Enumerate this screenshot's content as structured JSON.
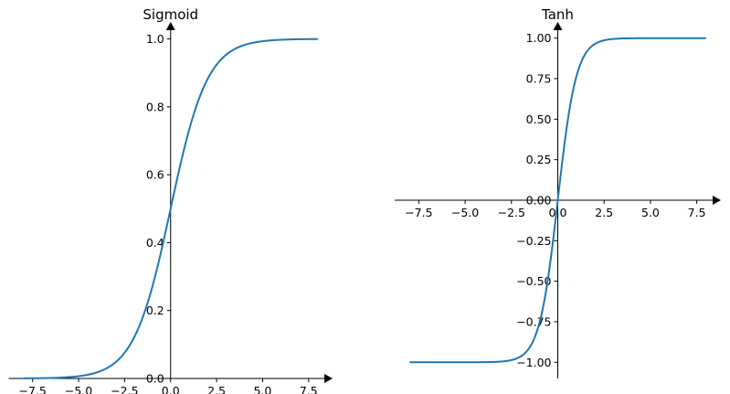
{
  "chart_data": [
    {
      "type": "line",
      "title": "Sigmoid",
      "xlabel": "",
      "ylabel": "",
      "xlim": [
        -8.8,
        8.8
      ],
      "ylim": [
        0.0,
        1.05
      ],
      "x_ticks": [
        -7.5,
        -5.0,
        -2.5,
        0.0,
        2.5,
        5.0,
        7.5
      ],
      "x_tick_labels": [
        "−7.5",
        "−5.0",
        "−2.5",
        "0.0",
        "2.5",
        "5.0",
        "7.5"
      ],
      "y_ticks": [
        0.0,
        0.2,
        0.4,
        0.6,
        0.8,
        1.0
      ],
      "y_tick_labels": [
        "0.0",
        "0.2",
        "0.4",
        "0.6",
        "0.8",
        "1.0"
      ],
      "axes_through_origin": true,
      "axis_arrows": true,
      "grid": false,
      "series": [
        {
          "color": "#1f77b4",
          "function": "sigmoid",
          "x_range": [
            -8,
            8
          ],
          "points": [
            [
              -8,
              0.0003
            ],
            [
              -6,
              0.0025
            ],
            [
              -4,
              0.018
            ],
            [
              -3,
              0.047
            ],
            [
              -2,
              0.119
            ],
            [
              -1,
              0.269
            ],
            [
              0,
              0.5
            ],
            [
              1,
              0.731
            ],
            [
              2,
              0.881
            ],
            [
              3,
              0.953
            ],
            [
              4,
              0.982
            ],
            [
              6,
              0.9975
            ],
            [
              8,
              0.9997
            ]
          ]
        }
      ]
    },
    {
      "type": "line",
      "title": "Tanh",
      "xlabel": "",
      "ylabel": "",
      "xlim": [
        -8.8,
        8.8
      ],
      "ylim": [
        -1.1,
        1.1
      ],
      "x_ticks": [
        -7.5,
        -5.0,
        -2.5,
        0.0,
        2.5,
        5.0,
        7.5
      ],
      "x_tick_labels": [
        "−7.5",
        "−5.0",
        "−2.5",
        "0.0",
        "2.5",
        "5.0",
        "7.5"
      ],
      "y_ticks": [
        -1.0,
        -0.75,
        -0.5,
        -0.25,
        0.0,
        0.25,
        0.5,
        0.75,
        1.0
      ],
      "y_tick_labels": [
        "−1.00",
        "−0.75",
        "−0.50",
        "−0.25",
        "0.00",
        "0.25",
        "0.50",
        "0.75",
        "1.00"
      ],
      "axes_through_origin": true,
      "axis_arrows": true,
      "grid": false,
      "series": [
        {
          "color": "#1f77b4",
          "function": "tanh",
          "x_range": [
            -8,
            8
          ],
          "points": [
            [
              -8,
              -1.0
            ],
            [
              -4,
              -0.9993
            ],
            [
              -3,
              -0.995
            ],
            [
              -2,
              -0.964
            ],
            [
              -1,
              -0.762
            ],
            [
              -0.5,
              -0.462
            ],
            [
              0,
              0.0
            ],
            [
              0.5,
              0.462
            ],
            [
              1,
              0.762
            ],
            [
              2,
              0.964
            ],
            [
              3,
              0.995
            ],
            [
              4,
              0.9993
            ],
            [
              8,
              1.0
            ]
          ]
        }
      ]
    }
  ]
}
